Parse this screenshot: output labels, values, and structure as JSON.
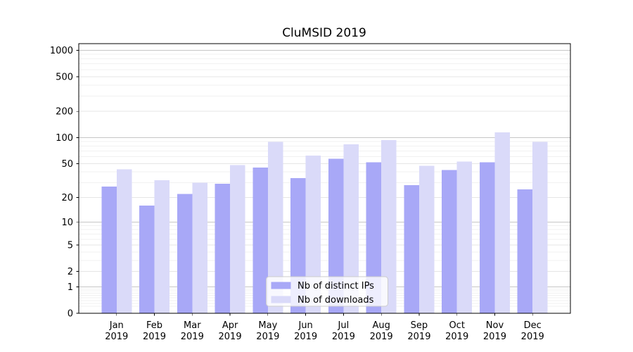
{
  "chart_data": {
    "type": "bar",
    "title": "CluMSID 2019",
    "xlabel": "",
    "ylabel": "",
    "yscale": "log1p",
    "ylim": [
      0,
      1191
    ],
    "yticks": [
      0,
      1,
      2,
      5,
      10,
      20,
      50,
      100,
      200,
      500,
      1000
    ],
    "grid": true,
    "categories": [
      {
        "month": "Jan",
        "year": "2019"
      },
      {
        "month": "Feb",
        "year": "2019"
      },
      {
        "month": "Mar",
        "year": "2019"
      },
      {
        "month": "Apr",
        "year": "2019"
      },
      {
        "month": "May",
        "year": "2019"
      },
      {
        "month": "Jun",
        "year": "2019"
      },
      {
        "month": "Jul",
        "year": "2019"
      },
      {
        "month": "Aug",
        "year": "2019"
      },
      {
        "month": "Sep",
        "year": "2019"
      },
      {
        "month": "Oct",
        "year": "2019"
      },
      {
        "month": "Nov",
        "year": "2019"
      },
      {
        "month": "Dec",
        "year": "2019"
      }
    ],
    "series": [
      {
        "name": "Nb of distinct IPs",
        "color": "#a8a8f7",
        "values": [
          27,
          16,
          22,
          29,
          45,
          34,
          57,
          52,
          28,
          42,
          52,
          25
        ]
      },
      {
        "name": "Nb of downloads",
        "color": "#dadaf9",
        "values": [
          43,
          32,
          30,
          48,
          89,
          62,
          84,
          94,
          47,
          53,
          115,
          89
        ]
      }
    ],
    "legend": {
      "labels": [
        "Nb of distinct IPs",
        "Nb of downloads"
      ],
      "position": "lower center"
    }
  }
}
